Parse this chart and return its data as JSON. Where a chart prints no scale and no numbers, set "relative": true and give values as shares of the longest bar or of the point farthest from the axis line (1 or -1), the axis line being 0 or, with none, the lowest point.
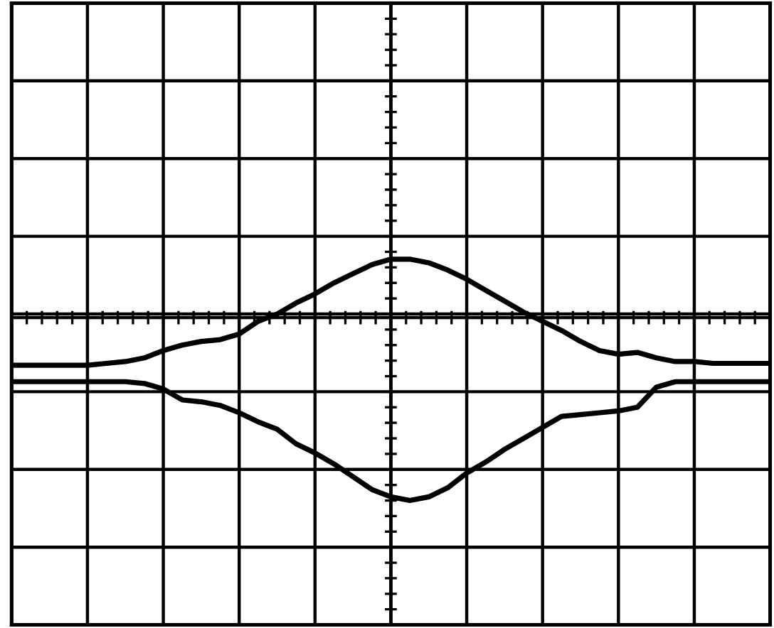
{
  "chart_data": {
    "type": "line",
    "relative": true,
    "grid": true,
    "tick_labels": false,
    "line_style": "solid",
    "marker": "none",
    "categories": [
      null,
      null,
      null,
      null,
      null,
      null,
      null,
      null,
      null,
      null,
      null,
      null,
      null,
      null,
      null,
      null,
      null,
      null,
      null,
      null,
      null,
      null,
      null,
      null,
      null,
      null,
      null,
      null,
      null,
      null,
      null,
      null,
      null,
      null,
      null,
      null,
      null,
      null,
      null,
      null,
      null
    ],
    "series": [
      {
        "color": "#000000",
        "values": [
          -0.26,
          -0.26,
          -0.26,
          -0.26,
          -0.26,
          -0.25,
          -0.24,
          -0.22,
          -0.18,
          -0.15,
          -0.13,
          -0.12,
          -0.09,
          -0.02,
          0.02,
          0.08,
          0.13,
          0.19,
          0.24,
          0.29,
          0.32,
          0.32,
          0.3,
          0.26,
          0.21,
          0.15,
          0.09,
          0.03,
          -0.02,
          -0.07,
          -0.13,
          -0.18,
          -0.2,
          -0.19,
          -0.22,
          -0.24,
          -0.24,
          -0.25,
          -0.25,
          -0.25,
          -0.25
        ]
      },
      {
        "color": "#000000",
        "values": [
          -0.35,
          -0.35,
          -0.35,
          -0.35,
          -0.35,
          -0.35,
          -0.35,
          -0.36,
          -0.39,
          -0.45,
          -0.46,
          -0.48,
          -0.52,
          -0.57,
          -0.61,
          -0.69,
          -0.74,
          -0.8,
          -0.87,
          -0.94,
          -0.98,
          -1,
          -0.98,
          -0.93,
          -0.85,
          -0.79,
          -0.72,
          -0.66,
          -0.6,
          -0.54,
          -0.53,
          -0.52,
          -0.51,
          -0.49,
          -0.38,
          -0.35,
          -0.35,
          -0.35,
          -0.35,
          -0.35,
          -0.35
        ]
      }
    ]
  }
}
